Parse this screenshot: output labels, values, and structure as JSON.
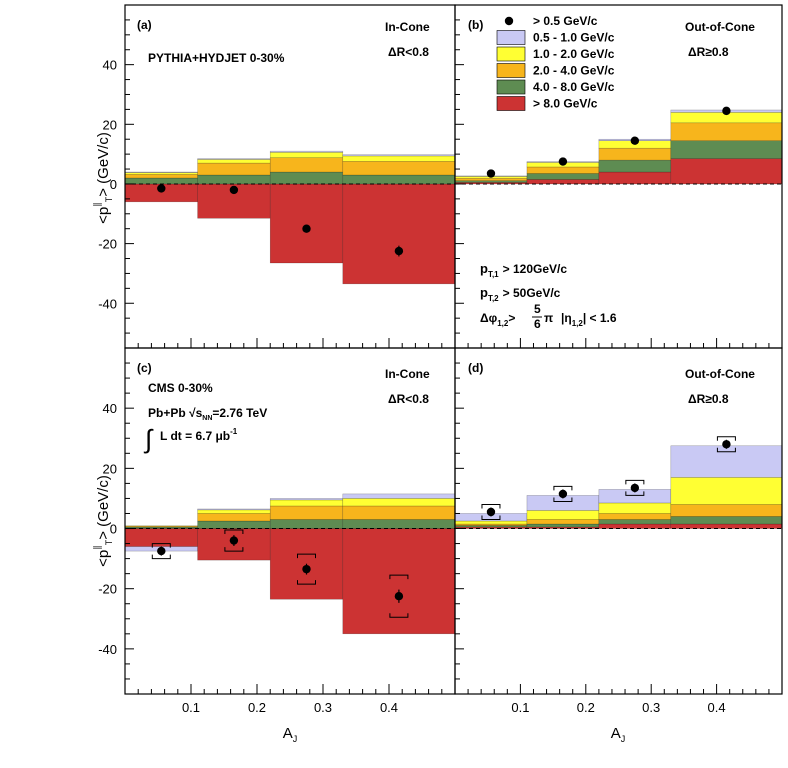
{
  "colors": {
    "b1": "#c9c9f4",
    "b2": "#ffff33",
    "b3": "#f7b51c",
    "b4": "#5e8c52",
    "b5": "#cc3333",
    "pt": "#000000"
  },
  "shared": {
    "ylabel": "<p_T^∥> (GeV/c)",
    "ylabel_main": "<p",
    "ylabel_sup": "∥",
    "ylabel_sub": "T",
    "ylabel_tail": "> (GeV/c)",
    "xlabel": "A_J",
    "xlabel_main": "A",
    "xlabel_sub": "J",
    "x_ticks": [
      "0.1",
      "0.2",
      "0.3",
      "0.4"
    ],
    "y_ticks": [
      "-40",
      "-20",
      "0",
      "20",
      "40"
    ],
    "xlim": [
      0,
      0.5
    ],
    "ylim": [
      -55,
      60
    ],
    "bins": [
      0,
      0.11,
      0.22,
      0.33,
      0.5
    ]
  },
  "legend": [
    {
      "key": "pt",
      "label": "> 0.5 GeV/c",
      "marker": "point"
    },
    {
      "key": "b1",
      "label": "0.5 - 1.0 GeV/c"
    },
    {
      "key": "b2",
      "label": "1.0 - 2.0 GeV/c"
    },
    {
      "key": "b3",
      "label": "2.0 - 4.0 GeV/c"
    },
    {
      "key": "b4",
      "label": "4.0 - 8.0 GeV/c"
    },
    {
      "key": "b5",
      "label": "> 8.0 GeV/c"
    }
  ],
  "cuts": {
    "pt1_main": "p",
    "pt1_sub": "T,1",
    "pt1_tail": "> 120GeV/c",
    "pt2_main": "p",
    "pt2_sub": "T,2",
    "pt2_tail": "> 50GeV/c",
    "dphi_main": "Δφ",
    "dphi_sub": "1,2",
    "dphi_gt": ">",
    "frac_num": "5",
    "frac_den": "6",
    "pi": "π",
    "eta_a": "|η",
    "eta_sub": "1,2",
    "eta_b": "| < 1.6"
  },
  "cms": {
    "collision_a": "Pb+Pb √s",
    "collision_sub": "NN",
    "collision_b": "=2.76 TeV",
    "lumi_int": "∫",
    "lumi_a": "L dt = 6.7 μb",
    "lumi_sup": "-1"
  },
  "chart_data": [
    {
      "id": "a",
      "type": "bar",
      "panel_label": "(a)",
      "cone": "In-Cone",
      "dr": "ΔR<0.8",
      "dataset": "PYTHIA+HYDJET 0-30%",
      "x": [
        0.055,
        0.165,
        0.275,
        0.415
      ],
      "series": [
        {
          "key": "b5",
          "label": "> 8.0 GeV/c",
          "values": [
            -6,
            -11.5,
            -26.5,
            -33.5
          ]
        },
        {
          "key": "b4",
          "label": "4.0 - 8.0 GeV/c",
          "values": [
            2,
            3,
            4,
            3
          ]
        },
        {
          "key": "b3",
          "label": "2.0 - 4.0 GeV/c",
          "values": [
            1.2,
            4,
            4.8,
            4.6
          ]
        },
        {
          "key": "b2",
          "label": "1.0 - 2.0 GeV/c",
          "values": [
            0.6,
            1.2,
            1.8,
            1.8
          ]
        },
        {
          "key": "b1",
          "label": "0.5 - 1.0 GeV/c",
          "values": [
            0.2,
            0.3,
            0.4,
            0.4
          ]
        }
      ],
      "points": {
        "label": "> 0.5 GeV/c",
        "values": [
          -1.5,
          -2,
          -15,
          -22.5
        ],
        "errors": [
          0,
          0,
          0,
          1.8
        ]
      }
    },
    {
      "id": "b",
      "type": "bar",
      "panel_label": "(b)",
      "cone": "Out-of-Cone",
      "dr": "ΔR≥0.8",
      "dataset": "",
      "x": [
        0.055,
        0.165,
        0.275,
        0.415
      ],
      "series": [
        {
          "key": "b5",
          "label": "> 8.0 GeV/c",
          "values": [
            0.5,
            1.5,
            4,
            8.5
          ]
        },
        {
          "key": "b4",
          "label": "4.0 - 8.0 GeV/c",
          "values": [
            0.6,
            2,
            4,
            6
          ]
        },
        {
          "key": "b3",
          "label": "2.0 - 4.0 GeV/c",
          "values": [
            0.8,
            2.2,
            4,
            6
          ]
        },
        {
          "key": "b2",
          "label": "1.0 - 2.0 GeV/c",
          "values": [
            0.6,
            1.5,
            2.5,
            3.5
          ]
        },
        {
          "key": "b1",
          "label": "0.5 - 1.0 GeV/c",
          "values": [
            0.2,
            0.3,
            0.5,
            0.8
          ]
        }
      ],
      "points": {
        "label": "> 0.5 GeV/c",
        "values": [
          3.5,
          7.5,
          14.5,
          24.5
        ],
        "errors": [
          0,
          0,
          0,
          0
        ]
      }
    },
    {
      "id": "c",
      "type": "bar",
      "panel_label": "(c)",
      "cone": "In-Cone",
      "dr": "ΔR<0.8",
      "dataset": "CMS 0-30%",
      "x": [
        0.055,
        0.165,
        0.275,
        0.415
      ],
      "series": [
        {
          "key": "b5",
          "label": "> 8.0 GeV/c",
          "values": [
            -6,
            -10.5,
            -23.5,
            -35
          ]
        },
        {
          "key": "b4",
          "label": "4.0 - 8.0 GeV/c",
          "values": [
            0.5,
            2.5,
            3,
            3
          ]
        },
        {
          "key": "b3",
          "label": "2.0 - 4.0 GeV/c",
          "values": [
            0.3,
            2.5,
            4.5,
            4.5
          ]
        },
        {
          "key": "b2",
          "label": "1.0 - 2.0 GeV/c",
          "values": [
            0.1,
            1.2,
            2,
            2.5
          ]
        },
        {
          "key": "b1",
          "label": "0.5 - 1.0 GeV/c",
          "values": [
            -1.5,
            0.3,
            0.5,
            1.5
          ]
        }
      ],
      "points": {
        "label": "> 0.5 GeV/c",
        "values": [
          -7.5,
          -4,
          -13.5,
          -22.5
        ],
        "errors": [
          1.5,
          1.8,
          1.8,
          2.2
        ],
        "sys": [
          2.5,
          3.5,
          5,
          7
        ]
      }
    },
    {
      "id": "d",
      "type": "bar",
      "panel_label": "(d)",
      "cone": "Out-of-Cone",
      "dr": "ΔR≥0.8",
      "dataset": "",
      "x": [
        0.055,
        0.165,
        0.275,
        0.415
      ],
      "series": [
        {
          "key": "b5",
          "label": "> 8.0 GeV/c",
          "values": [
            0.5,
            0.5,
            1.5,
            1.5
          ]
        },
        {
          "key": "b4",
          "label": "4.0 - 8.0 GeV/c",
          "values": [
            0.5,
            1,
            1.5,
            2.5
          ]
        },
        {
          "key": "b3",
          "label": "2.0 - 4.0 GeV/c",
          "values": [
            0.5,
            1.5,
            2,
            4
          ]
        },
        {
          "key": "b2",
          "label": "1.0 - 2.0 GeV/c",
          "values": [
            1,
            3,
            3.5,
            9
          ]
        },
        {
          "key": "b1",
          "label": "0.5 - 1.0 GeV/c",
          "values": [
            2.5,
            5,
            4.5,
            10.5
          ]
        }
      ],
      "points": {
        "label": "> 0.5 GeV/c",
        "values": [
          5.5,
          11.5,
          13.5,
          28
        ],
        "errors": [
          1.5,
          1.5,
          1.5,
          1.5
        ],
        "sys": [
          2.5,
          2.5,
          2.5,
          2.5
        ]
      }
    }
  ]
}
